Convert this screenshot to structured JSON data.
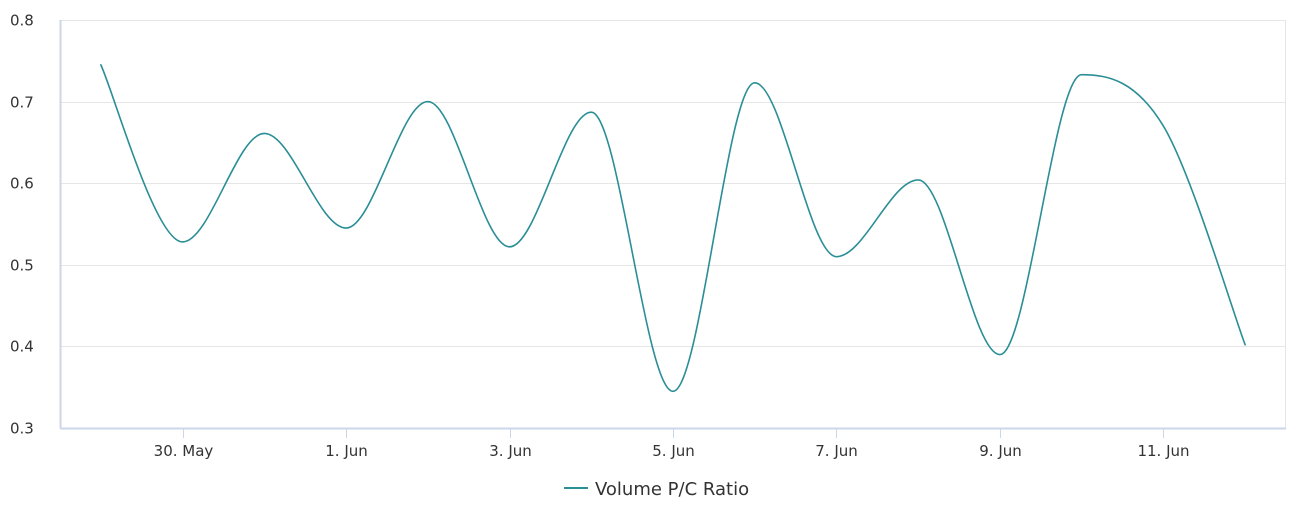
{
  "chart_data": {
    "type": "line",
    "title": "",
    "xlabel": "",
    "ylabel": "",
    "x_ticks": [
      "30. May",
      "1. Jun",
      "3. Jun",
      "5. Jun",
      "7. Jun",
      "9. Jun",
      "11. Jun"
    ],
    "y_ticks": [
      "0.3",
      "0.4",
      "0.5",
      "0.6",
      "0.7",
      "0.8"
    ],
    "ylim": [
      0.3,
      0.8
    ],
    "xlim": [
      "2024-05-28T12:00",
      "2024-06-12T12:00"
    ],
    "grid": "horizontal",
    "legend_position": "bottom-center",
    "series": [
      {
        "name": "Volume P/C Ratio",
        "color": "#2a8e96",
        "x": [
          "2024-05-29",
          "2024-05-30",
          "2024-05-31",
          "2024-06-01",
          "2024-06-02",
          "2024-06-03",
          "2024-06-04",
          "2024-06-05",
          "2024-06-06",
          "2024-06-07",
          "2024-06-08",
          "2024-06-09",
          "2024-06-10",
          "2024-06-11",
          "2024-06-12"
        ],
        "values": [
          0.745,
          0.528,
          0.661,
          0.545,
          0.7,
          0.522,
          0.687,
          0.345,
          0.723,
          0.51,
          0.604,
          0.39,
          0.733,
          0.67,
          0.402
        ]
      }
    ]
  }
}
